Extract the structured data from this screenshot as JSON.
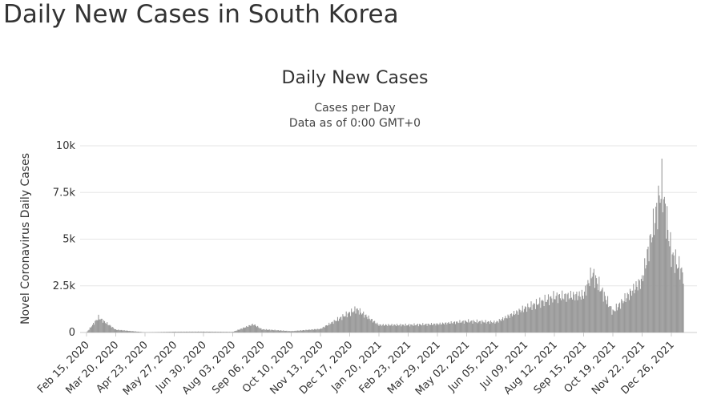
{
  "page": {
    "title": "Daily New Cases in South Korea"
  },
  "chart_data": {
    "type": "bar",
    "title": "Daily New Cases",
    "subtitle": "Cases per Day",
    "subtitle2": "Data as of 0:00 GMT+0",
    "ylabel": "Novel Coronavirus Daily Cases",
    "xlabel": "",
    "ylim": [
      0,
      10000
    ],
    "y_ticks": [
      {
        "value": 0,
        "label": "0"
      },
      {
        "value": 2500,
        "label": "2.5k"
      },
      {
        "value": 5000,
        "label": "5k"
      },
      {
        "value": 7500,
        "label": "7.5k"
      },
      {
        "value": 10000,
        "label": "10k"
      }
    ],
    "x_tick_labels": [
      "Feb 15, 2020",
      "Mar 20, 2020",
      "Apr 23, 2020",
      "May 27, 2020",
      "Jun 30, 2020",
      "Aug 03, 2020",
      "Sep 06, 2020",
      "Oct 10, 2020",
      "Nov 13, 2020",
      "Dec 17, 2020",
      "Jan 20, 2021",
      "Feb 23, 2021",
      "Mar 29, 2021",
      "May 02, 2021",
      "Jun 05, 2021",
      "Jul 09, 2021",
      "Aug 12, 2021",
      "Sep 15, 2021",
      "Oct 19, 2021",
      "Nov 22, 2021",
      "Dec 26, 2021"
    ],
    "bar_color": "#999999",
    "grid": true,
    "legend": "none",
    "series": [
      {
        "values": [
          {
            "x": "Feb 15, 2020",
            "y": 0
          },
          {
            "x": "Feb 29, 2020",
            "y": 800
          },
          {
            "x": "Mar 20, 2020",
            "y": 150
          },
          {
            "x": "Apr 23, 2020",
            "y": 10
          },
          {
            "x": "May 27, 2020",
            "y": 40
          },
          {
            "x": "Jun 30, 2020",
            "y": 45
          },
          {
            "x": "Aug 03, 2020",
            "y": 30
          },
          {
            "x": "Aug 27, 2020",
            "y": 440
          },
          {
            "x": "Sep 06, 2020",
            "y": 170
          },
          {
            "x": "Oct 10, 2020",
            "y": 70
          },
          {
            "x": "Nov 13, 2020",
            "y": 190
          },
          {
            "x": "Dec 17, 2020",
            "y": 1050
          },
          {
            "x": "Dec 25, 2020",
            "y": 1240
          },
          {
            "x": "Jan 20, 2021",
            "y": 400
          },
          {
            "x": "Feb 23, 2021",
            "y": 400
          },
          {
            "x": "Mar 29, 2021",
            "y": 450
          },
          {
            "x": "May 02, 2021",
            "y": 600
          },
          {
            "x": "Jun 05, 2021",
            "y": 550
          },
          {
            "x": "Jul 09, 2021",
            "y": 1300
          },
          {
            "x": "Aug 12, 2021",
            "y": 1900
          },
          {
            "x": "Sep 15, 2021",
            "y": 2000
          },
          {
            "x": "Sep 25, 2021",
            "y": 3200
          },
          {
            "x": "Oct 19, 2021",
            "y": 1100
          },
          {
            "x": "Nov 22, 2021",
            "y": 2800
          },
          {
            "x": "Dec 15, 2021",
            "y": 7850
          },
          {
            "x": "Dec 26, 2021",
            "y": 4200
          },
          {
            "x": "Jan 09, 2022",
            "y": 3100
          }
        ]
      }
    ]
  }
}
